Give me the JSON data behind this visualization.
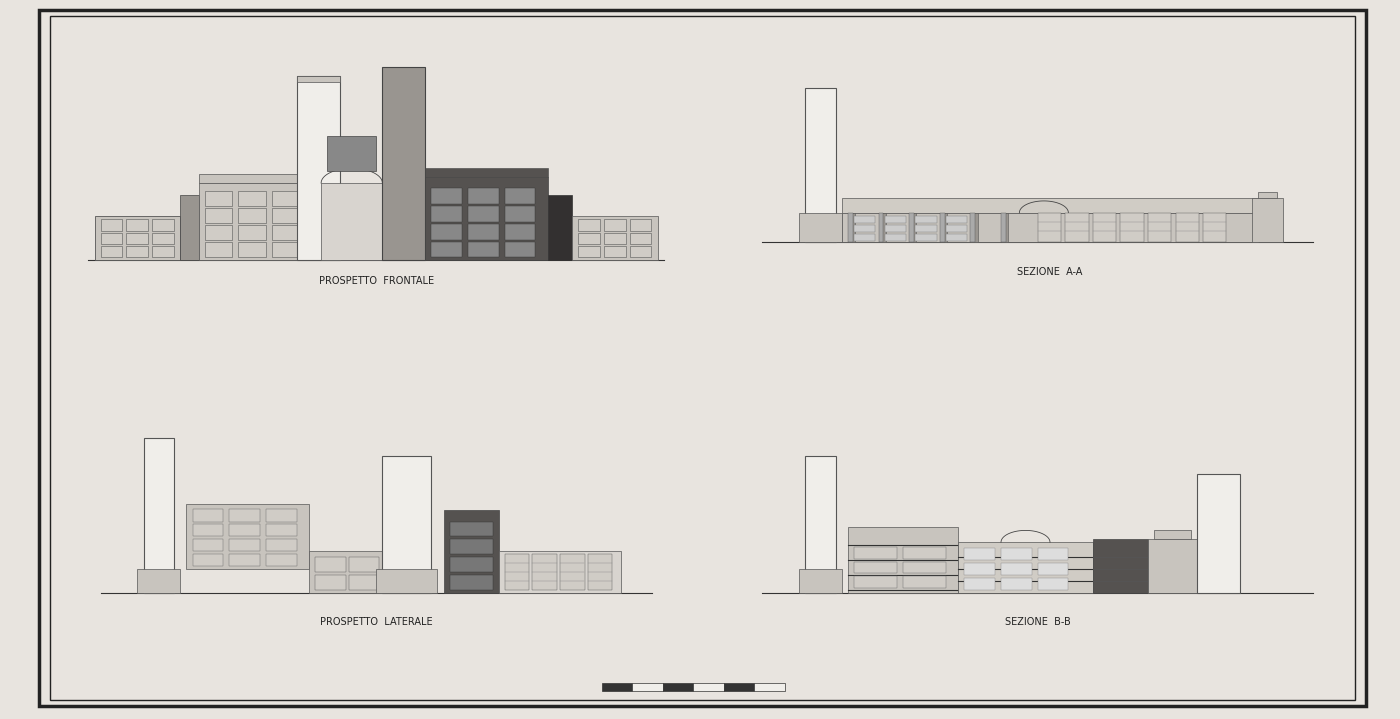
{
  "bg_color": "#e8e4df",
  "border_color": "#222222",
  "line_color": "#333333",
  "label_color": "#222222",
  "labels": [
    "PROSPETTO  FRONTALE",
    "SEZIONE  A-A",
    "PROSPETTO  LATERALE",
    "SEZIONE  B-B"
  ],
  "title_fontsize": 7.0,
  "light_gray": "#c8c4be",
  "mid_gray": "#999590",
  "dark_gray": "#555250",
  "very_dark": "#333030",
  "window_color": "#d0ccc6",
  "white_tower": "#f0eeea"
}
